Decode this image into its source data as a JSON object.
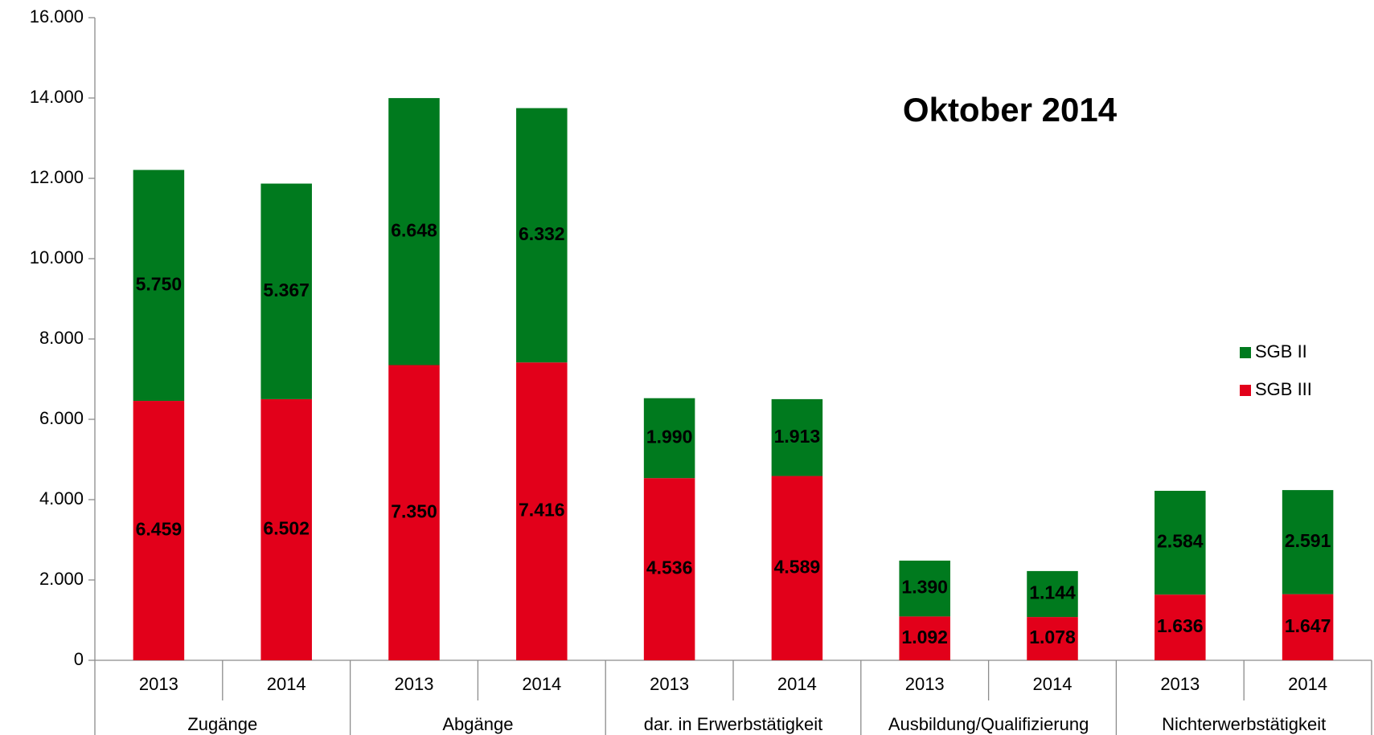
{
  "chart_data": {
    "type": "stacked_bar",
    "title": "Oktober 2014",
    "categories": [
      "2013",
      "2014",
      "2013",
      "2014",
      "2013",
      "2014",
      "2013",
      "2014",
      "2013",
      "2014"
    ],
    "groups": [
      "Zugänge",
      "Abgänge",
      "dar. in Erwerbstätigkeit",
      "Ausbildung/Qualifizierung",
      "Nichterwerbstätigkeit"
    ],
    "series": [
      {
        "name": "SGB III",
        "color": "#e2001a",
        "values": [
          6459,
          6502,
          7350,
          7416,
          4536,
          4589,
          1092,
          1078,
          1636,
          1647
        ],
        "value_labels": [
          "6.459",
          "6.502",
          "7.350",
          "7.416",
          "4.536",
          "4.589",
          "1.092",
          "1.078",
          "1.636",
          "1.647"
        ]
      },
      {
        "name": "SGB II",
        "color": "#007a1e",
        "values": [
          5750,
          5367,
          6648,
          6332,
          1990,
          1913,
          1390,
          1144,
          2584,
          2591
        ],
        "value_labels": [
          "5.750",
          "5.367",
          "6.648",
          "6.332",
          "1.990",
          "1.913",
          "1.390",
          "1.144",
          "2.584",
          "2.591"
        ]
      }
    ],
    "ylim": [
      0,
      16000
    ],
    "yticks": [
      0,
      {
        "value": 2000,
        "label": "2.000"
      },
      {
        "value": 4000,
        "label": "4.000"
      },
      {
        "value": 6000,
        "label": "6.000"
      },
      {
        "value": 8000,
        "label": "8.000"
      },
      {
        "value": 10000,
        "label": "10.000"
      },
      {
        "value": 12000,
        "label": "12.000"
      },
      {
        "value": 14000,
        "label": "14.000"
      },
      {
        "value": 16000,
        "label": "16.000"
      }
    ],
    "legend": "right"
  }
}
